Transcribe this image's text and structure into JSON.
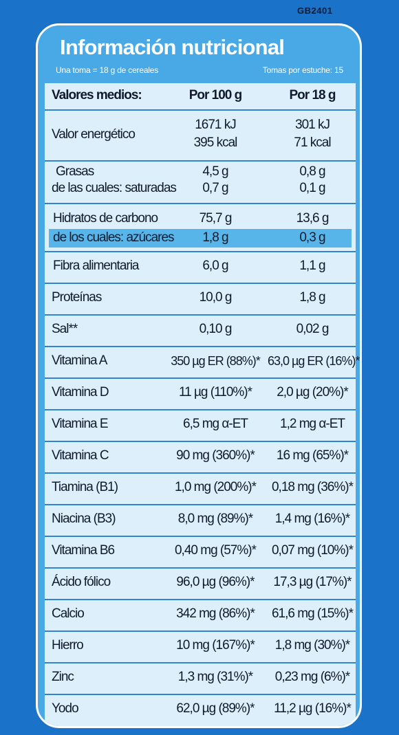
{
  "code": "GB2401",
  "header": {
    "title": "Información nutricional",
    "serving": "Una toma = 18 g de cereales",
    "servings_per_box": "Tomas por estuche: 15"
  },
  "columns": {
    "name": "Valores medios:",
    "per100": "Por 100 g",
    "per18": "Por 18 g"
  },
  "rows": [
    {
      "name": "Valor energético",
      "per100": "1671 kJ",
      "per18": "301 kJ",
      "per100_2": "395 kcal",
      "per18_2": "71 kcal"
    },
    {
      "name": "Grasas",
      "per100": "4,5  g",
      "per18": "0,8 g"
    },
    {
      "name": "de las cuales: saturadas",
      "per100": "0,7 g",
      "per18": "0,1 g"
    },
    {
      "name": "Hidratos de carbono",
      "per100": "75,7 g",
      "per18": "13,6 g"
    },
    {
      "name": "de los cuales: azúcares",
      "per100": "1,8 g",
      "per18": "0,3 g"
    },
    {
      "name": "Fibra alimentaria",
      "per100": "6,0 g",
      "per18": "1,1 g"
    },
    {
      "name": "Proteínas",
      "per100": "10,0 g",
      "per18": "1,8 g"
    },
    {
      "name": "Sal**",
      "per100": "0,10 g",
      "per18": "0,02 g"
    },
    {
      "name": "Vitamina A",
      "per100": "350 µg ER (88%)*",
      "per18": "63,0 µg ER (16%)*"
    },
    {
      "name": "Vitamina D",
      "per100": "11 µg (110%)*",
      "per18": "2,0 µg (20%)*"
    },
    {
      "name": "Vitamina E",
      "per100": "6,5 mg  α-ET",
      "per18": "1,2 mg  α-ET"
    },
    {
      "name": "Vitamina C",
      "per100": "90 mg (360%)*",
      "per18": "16 mg (65%)*"
    },
    {
      "name": "Tiamina (B1)",
      "per100": "1,0 mg (200%)*",
      "per18": "0,18 mg (36%)*"
    },
    {
      "name": "Niacina (B3)",
      "per100": "8,0 mg (89%)*",
      "per18": "1,4 mg (16%)*"
    },
    {
      "name": "Vitamina B6",
      "per100": "0,40 mg (57%)*",
      "per18": "0,07 mg (10%)*"
    },
    {
      "name": "Ácido fólico",
      "per100": "96,0 µg (96%)*",
      "per18": "17,3 µg (17%)*"
    },
    {
      "name": "Calcio",
      "per100": "342 mg (86%)*",
      "per18": "61,6 mg (15%)*"
    },
    {
      "name": "Hierro",
      "per100": "10 mg (167%)*",
      "per18": "1,8 mg (30%)*"
    },
    {
      "name": "Zinc",
      "per100": "1,3 mg (31%)*",
      "per18": "0,23 mg (6%)*"
    },
    {
      "name": "Yodo",
      "per100": "62,0 µg (89%)*",
      "per18": "11,2 µg (16%)*"
    }
  ]
}
